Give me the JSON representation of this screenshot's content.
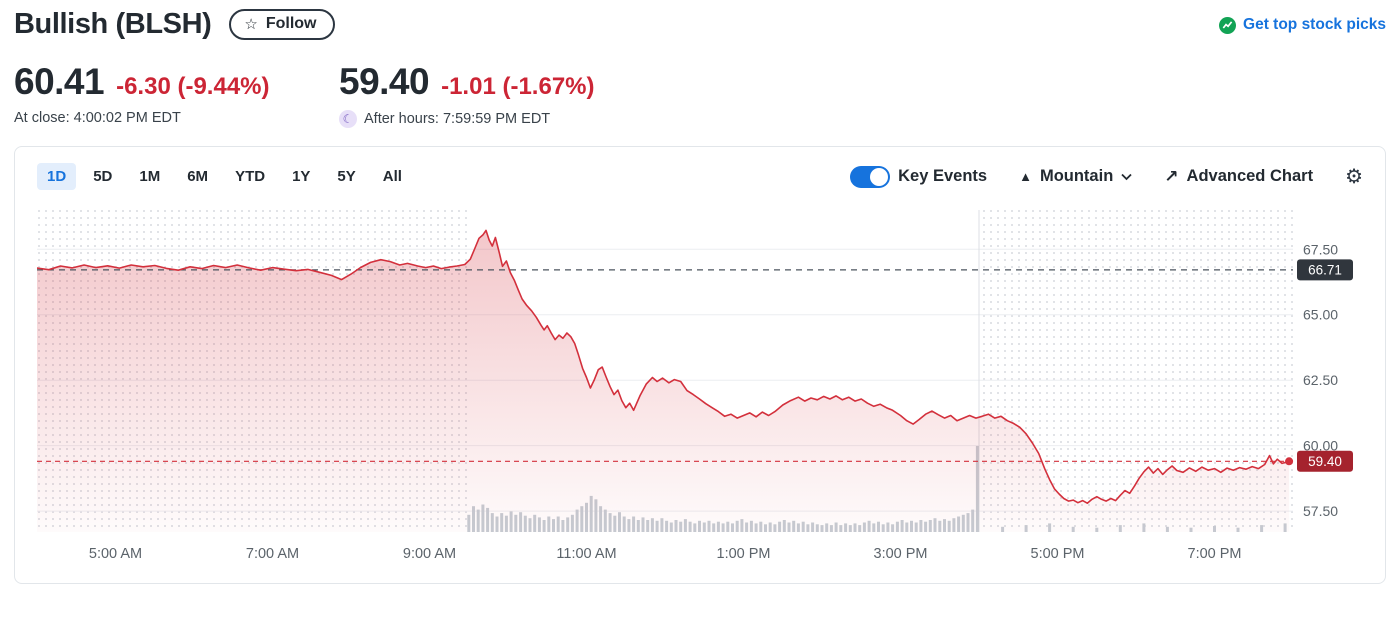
{
  "header": {
    "title": "Bullish (BLSH)",
    "follow_label": "Follow",
    "promo_label": "Get top stock picks"
  },
  "quote": {
    "price": "60.41",
    "change": "-6.30 (-9.44%)",
    "at_close_label": "At close: 4:00:02 PM EDT",
    "after_price": "59.40",
    "after_change": "-1.01 (-1.67%)",
    "after_hours_label": "After hours: 7:59:59 PM EDT"
  },
  "toolbar": {
    "ranges": [
      "1D",
      "5D",
      "1M",
      "6M",
      "YTD",
      "1Y",
      "5Y",
      "All"
    ],
    "selected_range": "1D",
    "key_events_label": "Key Events",
    "key_events_on": true,
    "chart_type_label": "Mountain",
    "advanced_chart_label": "Advanced Chart"
  },
  "colors": {
    "accent_blue": "#1673dd",
    "negative_red": "#cc2535",
    "line_red": "#d3303c",
    "green_badge": "#12a355",
    "badge_dark_bg": "#30363d",
    "badge_red_bg": "#a5232e",
    "axis_text": "#5b636a"
  },
  "chart_data": {
    "type": "area",
    "symbol": "BLSH",
    "x_unit": "hour_of_day",
    "xlim": [
      4,
      20
    ],
    "ylim": [
      56.7,
      69.0
    ],
    "grid": true,
    "x_tick_hours": [
      5,
      7,
      9,
      11,
      13,
      15,
      17,
      19
    ],
    "x_tick_labels": [
      "5:00 AM",
      "7:00 AM",
      "9:00 AM",
      "11:00 AM",
      "1:00 PM",
      "3:00 PM",
      "5:00 PM",
      "7:00 PM"
    ],
    "y_tick_values": [
      67.5,
      65.0,
      62.5,
      60.0,
      57.5
    ],
    "y_tick_labels": [
      "67.50",
      "65.00",
      "62.50",
      "60.00",
      "57.50"
    ],
    "prev_close": {
      "value": 66.71,
      "label": "66.71"
    },
    "last_trade": {
      "value": 59.4,
      "label": "59.40"
    },
    "market_open_hour": 9.5,
    "market_close_hour": 16,
    "line_color": "#d3303c",
    "fill_color": "#d3303c",
    "prev_close_line_color": "#4b545e",
    "badge_dark_bg": "#30363d",
    "badge_red_bg": "#a5232e",
    "volume_color": "#c6ccd3",
    "points": [
      [
        4.0,
        66.78
      ],
      [
        4.15,
        66.72
      ],
      [
        4.3,
        66.86
      ],
      [
        4.45,
        66.79
      ],
      [
        4.6,
        66.9
      ],
      [
        4.75,
        66.8
      ],
      [
        4.9,
        66.87
      ],
      [
        5.05,
        66.78
      ],
      [
        5.2,
        66.9
      ],
      [
        5.35,
        66.83
      ],
      [
        5.5,
        66.88
      ],
      [
        5.65,
        66.77
      ],
      [
        5.8,
        66.7
      ],
      [
        5.95,
        66.83
      ],
      [
        6.1,
        66.76
      ],
      [
        6.25,
        66.88
      ],
      [
        6.4,
        66.8
      ],
      [
        6.55,
        66.9
      ],
      [
        6.7,
        66.79
      ],
      [
        6.85,
        66.7
      ],
      [
        7.0,
        66.8
      ],
      [
        7.15,
        66.74
      ],
      [
        7.3,
        66.68
      ],
      [
        7.45,
        66.73
      ],
      [
        7.6,
        66.62
      ],
      [
        7.75,
        66.5
      ],
      [
        7.88,
        66.34
      ],
      [
        8.0,
        66.55
      ],
      [
        8.12,
        66.8
      ],
      [
        8.25,
        67.0
      ],
      [
        8.38,
        67.1
      ],
      [
        8.5,
        67.03
      ],
      [
        8.62,
        66.9
      ],
      [
        8.72,
        66.96
      ],
      [
        8.85,
        66.86
      ],
      [
        8.95,
        66.8
      ],
      [
        9.05,
        66.86
      ],
      [
        9.15,
        66.76
      ],
      [
        9.25,
        66.82
      ],
      [
        9.35,
        66.86
      ],
      [
        9.45,
        66.92
      ],
      [
        9.52,
        67.12
      ],
      [
        9.58,
        67.55
      ],
      [
        9.63,
        67.92
      ],
      [
        9.68,
        68.05
      ],
      [
        9.72,
        68.22
      ],
      [
        9.76,
        67.85
      ],
      [
        9.8,
        67.62
      ],
      [
        9.84,
        67.95
      ],
      [
        9.89,
        67.35
      ],
      [
        9.93,
        66.85
      ],
      [
        9.98,
        67.05
      ],
      [
        10.03,
        66.6
      ],
      [
        10.08,
        66.32
      ],
      [
        10.13,
        65.95
      ],
      [
        10.18,
        65.6
      ],
      [
        10.24,
        65.35
      ],
      [
        10.3,
        65.15
      ],
      [
        10.36,
        64.9
      ],
      [
        10.42,
        64.6
      ],
      [
        10.46,
        64.42
      ],
      [
        10.5,
        64.58
      ],
      [
        10.55,
        64.3
      ],
      [
        10.6,
        64.05
      ],
      [
        10.65,
        64.22
      ],
      [
        10.7,
        64.1
      ],
      [
        10.75,
        64.3
      ],
      [
        10.8,
        64.16
      ],
      [
        10.85,
        63.9
      ],
      [
        10.9,
        63.45
      ],
      [
        10.95,
        62.95
      ],
      [
        11.0,
        62.6
      ],
      [
        11.05,
        62.2
      ],
      [
        11.1,
        62.52
      ],
      [
        11.15,
        62.9
      ],
      [
        11.2,
        63.0
      ],
      [
        11.25,
        62.62
      ],
      [
        11.3,
        62.25
      ],
      [
        11.35,
        61.95
      ],
      [
        11.4,
        62.12
      ],
      [
        11.45,
        61.72
      ],
      [
        11.5,
        61.45
      ],
      [
        11.55,
        61.62
      ],
      [
        11.6,
        61.35
      ],
      [
        11.68,
        61.9
      ],
      [
        11.76,
        62.35
      ],
      [
        11.84,
        62.6
      ],
      [
        11.9,
        62.45
      ],
      [
        11.97,
        62.58
      ],
      [
        12.05,
        62.4
      ],
      [
        12.12,
        62.52
      ],
      [
        12.2,
        62.45
      ],
      [
        12.28,
        62.1
      ],
      [
        12.36,
        61.95
      ],
      [
        12.44,
        61.78
      ],
      [
        12.52,
        61.6
      ],
      [
        12.6,
        61.45
      ],
      [
        12.68,
        61.3
      ],
      [
        12.76,
        61.12
      ],
      [
        12.84,
        61.2
      ],
      [
        12.92,
        61.05
      ],
      [
        13.0,
        61.15
      ],
      [
        13.08,
        61.25
      ],
      [
        13.16,
        61.1
      ],
      [
        13.24,
        61.28
      ],
      [
        13.32,
        61.15
      ],
      [
        13.4,
        61.3
      ],
      [
        13.5,
        61.55
      ],
      [
        13.6,
        61.72
      ],
      [
        13.7,
        61.85
      ],
      [
        13.78,
        61.7
      ],
      [
        13.86,
        61.82
      ],
      [
        13.94,
        61.75
      ],
      [
        14.02,
        61.88
      ],
      [
        14.1,
        61.78
      ],
      [
        14.18,
        61.9
      ],
      [
        14.26,
        61.75
      ],
      [
        14.34,
        61.85
      ],
      [
        14.42,
        61.7
      ],
      [
        14.5,
        61.78
      ],
      [
        14.58,
        61.62
      ],
      [
        14.66,
        61.5
      ],
      [
        14.74,
        61.58
      ],
      [
        14.82,
        61.45
      ],
      [
        14.9,
        61.35
      ],
      [
        15.0,
        61.15
      ],
      [
        15.08,
        60.95
      ],
      [
        15.16,
        60.82
      ],
      [
        15.24,
        61.0
      ],
      [
        15.32,
        61.2
      ],
      [
        15.4,
        61.32
      ],
      [
        15.48,
        61.18
      ],
      [
        15.56,
        61.05
      ],
      [
        15.64,
        61.15
      ],
      [
        15.72,
        60.95
      ],
      [
        15.8,
        61.05
      ],
      [
        15.88,
        61.15
      ],
      [
        15.96,
        61.05
      ],
      [
        16.04,
        61.12
      ],
      [
        16.12,
        61.2
      ],
      [
        16.2,
        61.05
      ],
      [
        16.28,
        61.12
      ],
      [
        16.36,
        60.95
      ],
      [
        16.44,
        60.85
      ],
      [
        16.52,
        60.7
      ],
      [
        16.6,
        60.45
      ],
      [
        16.68,
        60.1
      ],
      [
        16.76,
        59.7
      ],
      [
        16.84,
        59.1
      ],
      [
        16.9,
        58.7
      ],
      [
        16.96,
        58.35
      ],
      [
        17.02,
        58.15
      ],
      [
        17.08,
        57.98
      ],
      [
        17.14,
        57.88
      ],
      [
        17.2,
        57.92
      ],
      [
        17.26,
        57.82
      ],
      [
        17.32,
        57.9
      ],
      [
        17.38,
        57.8
      ],
      [
        17.44,
        57.95
      ],
      [
        17.5,
        58.05
      ],
      [
        17.56,
        57.95
      ],
      [
        17.62,
        57.88
      ],
      [
        17.68,
        57.98
      ],
      [
        17.74,
        57.9
      ],
      [
        17.8,
        58.1
      ],
      [
        17.86,
        58.28
      ],
      [
        17.92,
        58.18
      ],
      [
        17.98,
        58.45
      ],
      [
        18.04,
        58.75
      ],
      [
        18.1,
        59.0
      ],
      [
        18.16,
        59.18
      ],
      [
        18.22,
        58.95
      ],
      [
        18.28,
        59.12
      ],
      [
        18.34,
        58.9
      ],
      [
        18.4,
        59.08
      ],
      [
        18.46,
        59.22
      ],
      [
        18.52,
        59.05
      ],
      [
        18.6,
        58.98
      ],
      [
        18.68,
        59.15
      ],
      [
        18.76,
        59.02
      ],
      [
        18.84,
        59.18
      ],
      [
        18.92,
        59.06
      ],
      [
        19.0,
        59.12
      ],
      [
        19.08,
        58.98
      ],
      [
        19.16,
        59.14
      ],
      [
        19.24,
        59.06
      ],
      [
        19.32,
        59.16
      ],
      [
        19.4,
        59.1
      ],
      [
        19.48,
        59.2
      ],
      [
        19.56,
        59.12
      ],
      [
        19.64,
        59.28
      ],
      [
        19.7,
        59.62
      ],
      [
        19.75,
        59.3
      ],
      [
        19.8,
        59.48
      ],
      [
        19.86,
        59.32
      ],
      [
        19.95,
        59.4
      ]
    ],
    "volume": [
      [
        9.5,
        0.2
      ],
      [
        9.56,
        0.3
      ],
      [
        9.62,
        0.26
      ],
      [
        9.68,
        0.32
      ],
      [
        9.74,
        0.28
      ],
      [
        9.8,
        0.22
      ],
      [
        9.86,
        0.18
      ],
      [
        9.92,
        0.22
      ],
      [
        9.98,
        0.19
      ],
      [
        10.04,
        0.24
      ],
      [
        10.1,
        0.2
      ],
      [
        10.16,
        0.23
      ],
      [
        10.22,
        0.19
      ],
      [
        10.28,
        0.16
      ],
      [
        10.34,
        0.2
      ],
      [
        10.4,
        0.17
      ],
      [
        10.46,
        0.14
      ],
      [
        10.52,
        0.18
      ],
      [
        10.58,
        0.15
      ],
      [
        10.64,
        0.18
      ],
      [
        10.7,
        0.14
      ],
      [
        10.76,
        0.17
      ],
      [
        10.82,
        0.2
      ],
      [
        10.88,
        0.26
      ],
      [
        10.94,
        0.3
      ],
      [
        11.0,
        0.34
      ],
      [
        11.06,
        0.42
      ],
      [
        11.12,
        0.38
      ],
      [
        11.18,
        0.3
      ],
      [
        11.24,
        0.26
      ],
      [
        11.3,
        0.22
      ],
      [
        11.36,
        0.19
      ],
      [
        11.42,
        0.23
      ],
      [
        11.48,
        0.18
      ],
      [
        11.54,
        0.15
      ],
      [
        11.6,
        0.18
      ],
      [
        11.66,
        0.14
      ],
      [
        11.72,
        0.17
      ],
      [
        11.78,
        0.14
      ],
      [
        11.84,
        0.16
      ],
      [
        11.9,
        0.13
      ],
      [
        11.96,
        0.16
      ],
      [
        12.02,
        0.13
      ],
      [
        12.08,
        0.11
      ],
      [
        12.14,
        0.14
      ],
      [
        12.2,
        0.12
      ],
      [
        12.26,
        0.15
      ],
      [
        12.32,
        0.12
      ],
      [
        12.38,
        0.1
      ],
      [
        12.44,
        0.13
      ],
      [
        12.5,
        0.11
      ],
      [
        12.56,
        0.13
      ],
      [
        12.62,
        0.1
      ],
      [
        12.68,
        0.12
      ],
      [
        12.74,
        0.1
      ],
      [
        12.8,
        0.12
      ],
      [
        12.86,
        0.1
      ],
      [
        12.92,
        0.13
      ],
      [
        12.98,
        0.15
      ],
      [
        13.04,
        0.11
      ],
      [
        13.1,
        0.13
      ],
      [
        13.16,
        0.1
      ],
      [
        13.22,
        0.12
      ],
      [
        13.28,
        0.09
      ],
      [
        13.34,
        0.11
      ],
      [
        13.4,
        0.09
      ],
      [
        13.46,
        0.12
      ],
      [
        13.52,
        0.14
      ],
      [
        13.58,
        0.11
      ],
      [
        13.64,
        0.13
      ],
      [
        13.7,
        0.1
      ],
      [
        13.76,
        0.12
      ],
      [
        13.82,
        0.09
      ],
      [
        13.88,
        0.11
      ],
      [
        13.94,
        0.09
      ],
      [
        14.0,
        0.08
      ],
      [
        14.06,
        0.1
      ],
      [
        14.12,
        0.08
      ],
      [
        14.18,
        0.11
      ],
      [
        14.24,
        0.08
      ],
      [
        14.3,
        0.1
      ],
      [
        14.36,
        0.08
      ],
      [
        14.42,
        0.1
      ],
      [
        14.48,
        0.08
      ],
      [
        14.54,
        0.11
      ],
      [
        14.6,
        0.13
      ],
      [
        14.66,
        0.1
      ],
      [
        14.72,
        0.12
      ],
      [
        14.78,
        0.09
      ],
      [
        14.84,
        0.11
      ],
      [
        14.9,
        0.09
      ],
      [
        14.96,
        0.12
      ],
      [
        15.02,
        0.14
      ],
      [
        15.08,
        0.11
      ],
      [
        15.14,
        0.13
      ],
      [
        15.2,
        0.11
      ],
      [
        15.26,
        0.14
      ],
      [
        15.32,
        0.12
      ],
      [
        15.38,
        0.14
      ],
      [
        15.44,
        0.16
      ],
      [
        15.5,
        0.13
      ],
      [
        15.56,
        0.15
      ],
      [
        15.62,
        0.13
      ],
      [
        15.68,
        0.16
      ],
      [
        15.74,
        0.18
      ],
      [
        15.8,
        0.2
      ],
      [
        15.86,
        0.22
      ],
      [
        15.92,
        0.26
      ],
      [
        15.98,
        1.0
      ],
      [
        16.3,
        0.06
      ],
      [
        16.6,
        0.08
      ],
      [
        16.9,
        0.1
      ],
      [
        17.2,
        0.06
      ],
      [
        17.5,
        0.05
      ],
      [
        17.8,
        0.08
      ],
      [
        18.1,
        0.1
      ],
      [
        18.4,
        0.06
      ],
      [
        18.7,
        0.05
      ],
      [
        19.0,
        0.07
      ],
      [
        19.3,
        0.05
      ],
      [
        19.6,
        0.08
      ],
      [
        19.9,
        0.1
      ]
    ]
  }
}
